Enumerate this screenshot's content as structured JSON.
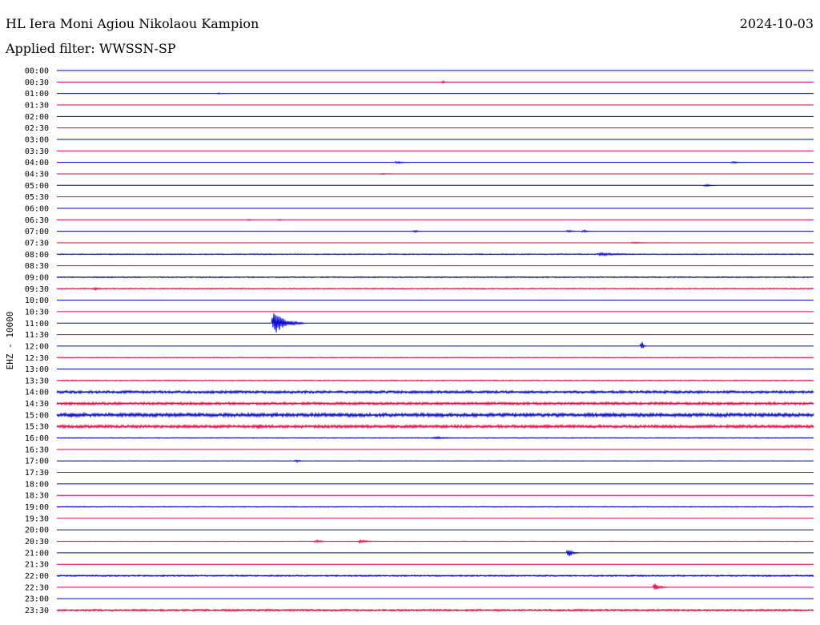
{
  "header": {
    "station": "HL Iera Moni Agiou Nikolaou Kampion",
    "date": "2024-10-03",
    "filter": "Applied filter: WWSSN-SP"
  },
  "colors": {
    "even_row": "#0000cc",
    "odd_row": "#e8003a"
  },
  "chart_data": {
    "type": "line",
    "title": "HL Iera Moni Agiou Nikolaou Kampion",
    "ylabel": "EHZ - 10000",
    "row_labels": [
      "00:00",
      "00:30",
      "01:00",
      "01:30",
      "02:00",
      "02:30",
      "03:00",
      "03:30",
      "04:00",
      "04:30",
      "05:00",
      "05:30",
      "06:00",
      "06:30",
      "07:00",
      "07:30",
      "08:00",
      "08:30",
      "09:00",
      "09:30",
      "10:00",
      "10:30",
      "11:00",
      "11:30",
      "12:00",
      "12:30",
      "13:00",
      "13:30",
      "14:00",
      "14:30",
      "15:00",
      "15:30",
      "16:00",
      "16:30",
      "17:00",
      "17:30",
      "18:00",
      "18:30",
      "19:00",
      "19:30",
      "20:00",
      "20:30",
      "21:00",
      "21:30",
      "22:00",
      "22:30",
      "23:00",
      "23:30"
    ],
    "minutes_per_row": 30,
    "grid": false,
    "row_noise": [
      0,
      0,
      0,
      0,
      0,
      0,
      0,
      0,
      0,
      0,
      0,
      0,
      0,
      0,
      0,
      0,
      0.6,
      0,
      0.7,
      0.6,
      0,
      0,
      0,
      0,
      0,
      0.4,
      0,
      0.6,
      1.6,
      1.6,
      2.2,
      1.8,
      0.5,
      0,
      0.3,
      0,
      0,
      0,
      0.5,
      0,
      0,
      0.3,
      0,
      0,
      0.9,
      0,
      0,
      1.2
    ],
    "events": [
      {
        "row": 1,
        "minute": 15.3,
        "amplitude": 2,
        "duration": 0.2
      },
      {
        "row": 2,
        "minute": 6.4,
        "amplitude": 1,
        "duration": 0.4
      },
      {
        "row": 4,
        "minute": 0,
        "amplitude": 0,
        "duration": 0
      },
      {
        "row": 8,
        "minute": 13.5,
        "amplitude": 2,
        "duration": 0.5
      },
      {
        "row": 8,
        "minute": 26.8,
        "amplitude": 2,
        "duration": 0.5
      },
      {
        "row": 9,
        "minute": 12.9,
        "amplitude": 1,
        "duration": 0.5
      },
      {
        "row": 10,
        "minute": 25.7,
        "amplitude": 2,
        "duration": 0.5
      },
      {
        "row": 13,
        "minute": 7.6,
        "amplitude": 1,
        "duration": 0.3
      },
      {
        "row": 13,
        "minute": 8.8,
        "amplitude": 1,
        "duration": 0.3
      },
      {
        "row": 14,
        "minute": 14.2,
        "amplitude": 2,
        "duration": 0.3
      },
      {
        "row": 14,
        "minute": 20.3,
        "amplitude": 2,
        "duration": 0.4
      },
      {
        "row": 14,
        "minute": 20.9,
        "amplitude": 2,
        "duration": 0.4
      },
      {
        "row": 15,
        "minute": 22.8,
        "amplitude": 1,
        "duration": 1.5
      },
      {
        "row": 16,
        "minute": 21.5,
        "amplitude": 2,
        "duration": 3
      },
      {
        "row": 19,
        "minute": 1.5,
        "amplitude": 2,
        "duration": 0.6
      },
      {
        "row": 22,
        "minute": 8.6,
        "amplitude": 16,
        "duration": 1.2
      },
      {
        "row": 24,
        "minute": 23.2,
        "amplitude": 6,
        "duration": 0.15
      },
      {
        "row": 29,
        "minute": 0.5,
        "amplitude": 3,
        "duration": 0.4
      },
      {
        "row": 30,
        "minute": 0.5,
        "amplitude": 4,
        "duration": 1.5
      },
      {
        "row": 30,
        "minute": 21.7,
        "amplitude": 4,
        "duration": 1.2
      },
      {
        "row": 31,
        "minute": 8.0,
        "amplitude": 4,
        "duration": 0.6
      },
      {
        "row": 32,
        "minute": 15.0,
        "amplitude": 2,
        "duration": 1.2
      },
      {
        "row": 34,
        "minute": 9.5,
        "amplitude": 2,
        "duration": 0.5
      },
      {
        "row": 41,
        "minute": 10.3,
        "amplitude": 2,
        "duration": 0.6
      },
      {
        "row": 41,
        "minute": 12.0,
        "amplitude": 2,
        "duration": 1.0
      },
      {
        "row": 42,
        "minute": 20.3,
        "amplitude": 6,
        "duration": 0.4
      },
      {
        "row": 45,
        "minute": 23.7,
        "amplitude": 5,
        "duration": 0.6
      }
    ]
  }
}
